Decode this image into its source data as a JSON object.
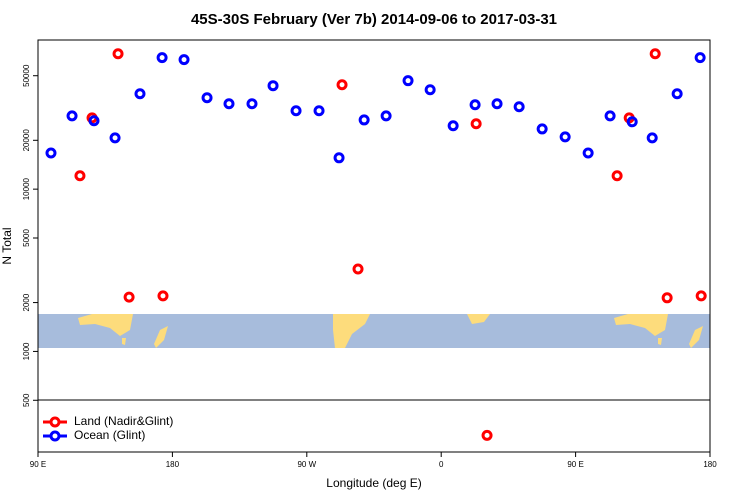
{
  "chart_data": {
    "type": "scatter",
    "title": "45S-30S February (Ver 7b)   2014-09-06 to 2017-03-31",
    "x_label": "Longitude (deg E)",
    "y_label": "N Total",
    "log_y": true,
    "xlim": [
      90,
      540
    ],
    "ylim": [
      240,
      83000
    ],
    "xticks": [
      {
        "value": 90,
        "label": "90 E"
      },
      {
        "value": 180,
        "label": "180"
      },
      {
        "value": 270,
        "label": "90 W"
      },
      {
        "value": 360,
        "label": "0"
      },
      {
        "value": 450,
        "label": "90 E"
      },
      {
        "value": 540,
        "label": "180"
      }
    ],
    "yticks": [
      500,
      1000,
      2000,
      5000,
      10000,
      20000,
      50000
    ],
    "legend": "bottom-left",
    "series": [
      {
        "name": "Land (Nadir&Glint)",
        "color": "#ff0000",
        "x": [
          118.1,
          126.2,
          143.6,
          151.0,
          173.7,
          293.6,
          304.3,
          383.4,
          390.7,
          477.8,
          485.9,
          503.3,
          511.3,
          534.1
        ],
        "values": [
          12100,
          27500,
          68300,
          2160,
          2200,
          44000,
          3220,
          25300,
          304,
          12100,
          27500,
          68300,
          2140,
          2200
        ]
      },
      {
        "name": "Ocean (Glint)",
        "color": "#0000ff",
        "x": [
          98.7,
          112.8,
          127.5,
          141.6,
          158.3,
          173.1,
          187.8,
          203.2,
          217.9,
          233.3,
          247.4,
          262.8,
          278.2,
          291.6,
          308.4,
          323.1,
          337.8,
          352.6,
          368.0,
          382.7,
          397.4,
          412.2,
          427.6,
          443.0,
          458.4,
          473.1,
          487.9,
          501.3,
          518.0,
          533.4
        ],
        "values": [
          16700,
          28300,
          26400,
          20700,
          38700,
          64600,
          62800,
          36600,
          33600,
          33600,
          43400,
          30400,
          30400,
          15600,
          26700,
          28300,
          46600,
          41000,
          24600,
          33100,
          33600,
          32200,
          23500,
          21000,
          16700,
          28300,
          26000,
          20700,
          38700,
          64600
        ]
      }
    ]
  }
}
